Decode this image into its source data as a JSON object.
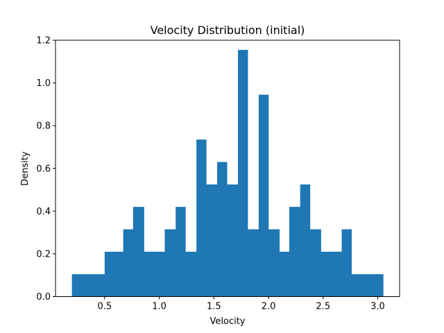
{
  "chart_data": {
    "type": "bar",
    "title": "Velocity Distribution (initial)",
    "xlabel": "Velocity",
    "ylabel": "Density",
    "xlim": [
      0.05,
      3.2
    ],
    "ylim": [
      0,
      1.2
    ],
    "grid": false,
    "bar_color": "#1f77b4",
    "bins": [
      {
        "x0": 0.2,
        "x1": 0.35,
        "value": 0.105
      },
      {
        "x0": 0.35,
        "x1": 0.5,
        "value": 0.105
      },
      {
        "x0": 0.5,
        "x1": 0.67,
        "value": 0.21
      },
      {
        "x0": 0.67,
        "x1": 0.76,
        "value": 0.315
      },
      {
        "x0": 0.76,
        "x1": 0.86,
        "value": 0.42
      },
      {
        "x0": 0.86,
        "x1": 1.05,
        "value": 0.21
      },
      {
        "x0": 1.05,
        "x1": 1.15,
        "value": 0.315
      },
      {
        "x0": 1.15,
        "x1": 1.24,
        "value": 0.42
      },
      {
        "x0": 1.24,
        "x1": 1.34,
        "value": 0.21
      },
      {
        "x0": 1.34,
        "x1": 1.43,
        "value": 0.735
      },
      {
        "x0": 1.43,
        "x1": 1.53,
        "value": 0.525
      },
      {
        "x0": 1.53,
        "x1": 1.62,
        "value": 0.63
      },
      {
        "x0": 1.62,
        "x1": 1.72,
        "value": 0.525
      },
      {
        "x0": 1.72,
        "x1": 1.81,
        "value": 1.155
      },
      {
        "x0": 1.81,
        "x1": 1.91,
        "value": 0.315
      },
      {
        "x0": 1.91,
        "x1": 2.0,
        "value": 0.945
      },
      {
        "x0": 2.0,
        "x1": 2.1,
        "value": 0.315
      },
      {
        "x0": 2.1,
        "x1": 2.19,
        "value": 0.21
      },
      {
        "x0": 2.19,
        "x1": 2.29,
        "value": 0.42
      },
      {
        "x0": 2.29,
        "x1": 2.38,
        "value": 0.525
      },
      {
        "x0": 2.38,
        "x1": 2.48,
        "value": 0.315
      },
      {
        "x0": 2.48,
        "x1": 2.67,
        "value": 0.21
      },
      {
        "x0": 2.67,
        "x1": 2.76,
        "value": 0.315
      },
      {
        "x0": 2.76,
        "x1": 3.05,
        "value": 0.105
      }
    ],
    "xticks": [
      "0.5",
      "1.0",
      "1.5",
      "2.0",
      "2.5",
      "3.0"
    ],
    "yticks": [
      "0.0",
      "0.2",
      "0.4",
      "0.6",
      "0.8",
      "1.0",
      "1.2"
    ]
  }
}
